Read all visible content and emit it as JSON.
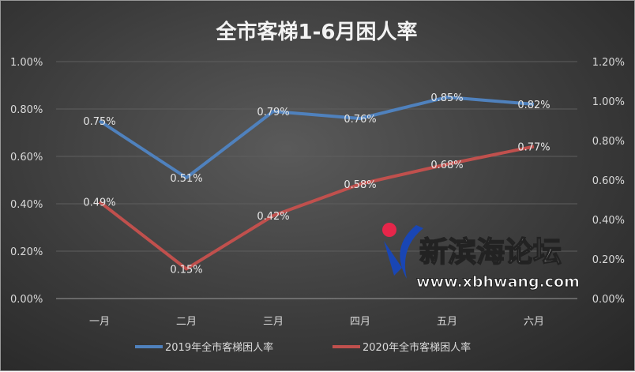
{
  "chart_data": {
    "type": "line",
    "title": "全市客梯1-6月困人率",
    "categories": [
      "一月",
      "二月",
      "三月",
      "四月",
      "五月",
      "六月"
    ],
    "series": [
      {
        "name": "2019年全市客梯困人率",
        "axis": "left",
        "color": "#4f81bd",
        "values": [
          0.75,
          0.51,
          0.79,
          0.76,
          0.85,
          0.82
        ],
        "labels": [
          "0.75%",
          "0.51%",
          "0.79%",
          "0.76%",
          "0.85%",
          "0.82%"
        ]
      },
      {
        "name": "2020年全市客梯困人率",
        "axis": "right",
        "color": "#c0504d",
        "values": [
          0.49,
          0.15,
          0.42,
          0.58,
          0.68,
          0.77
        ],
        "labels": [
          "0.49%",
          "0.15%",
          "0.42%",
          "0.58%",
          "0.68%",
          "0.77%"
        ]
      }
    ],
    "y_left": {
      "range": [
        0,
        1.0
      ],
      "ticks": [
        "0.00%",
        "0.20%",
        "0.40%",
        "0.60%",
        "0.80%",
        "1.00%"
      ]
    },
    "y_right": {
      "range": [
        0,
        1.2
      ],
      "ticks": [
        "0.00%",
        "0.20%",
        "0.40%",
        "0.60%",
        "0.80%",
        "1.00%",
        "1.20%"
      ]
    },
    "grid": true,
    "legend": "bottom"
  },
  "watermark": {
    "text": "新滨海论坛",
    "url": "www.xbhwang.com"
  }
}
